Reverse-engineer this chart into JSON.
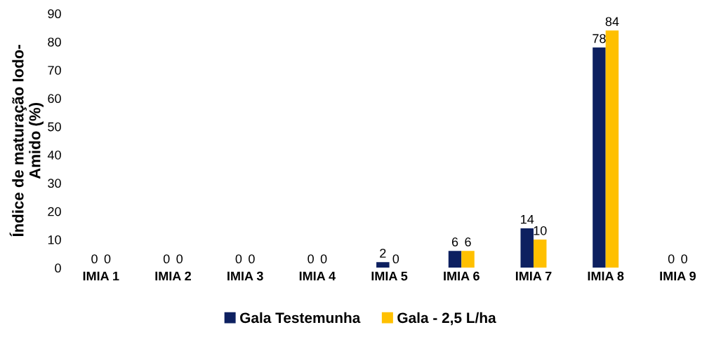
{
  "chart_data": {
    "type": "bar",
    "ylabel": "Índice de maturação Iodo-\nAmido (%)",
    "categories": [
      "IMIA 1",
      "IMIA 2",
      "IMIA 3",
      "IMIA 4",
      "IMIA 5",
      "IMIA 6",
      "IMIA 7",
      "IMIA 8",
      "IMIA 9"
    ],
    "series": [
      {
        "name": "Gala Testemunha",
        "color": "#0d2060",
        "values": [
          0,
          0,
          0,
          0,
          2,
          6,
          14,
          78,
          0
        ]
      },
      {
        "name": "Gala - 2,5 L/ha",
        "color": "#ffc000",
        "values": [
          0,
          0,
          0,
          0,
          0,
          6,
          10,
          84,
          0
        ]
      }
    ],
    "ylim": [
      0,
      90
    ],
    "yticks": [
      0,
      10,
      20,
      30,
      40,
      50,
      60,
      70,
      80,
      90
    ],
    "data_labels": true,
    "legend": "bottom",
    "grid": false
  }
}
